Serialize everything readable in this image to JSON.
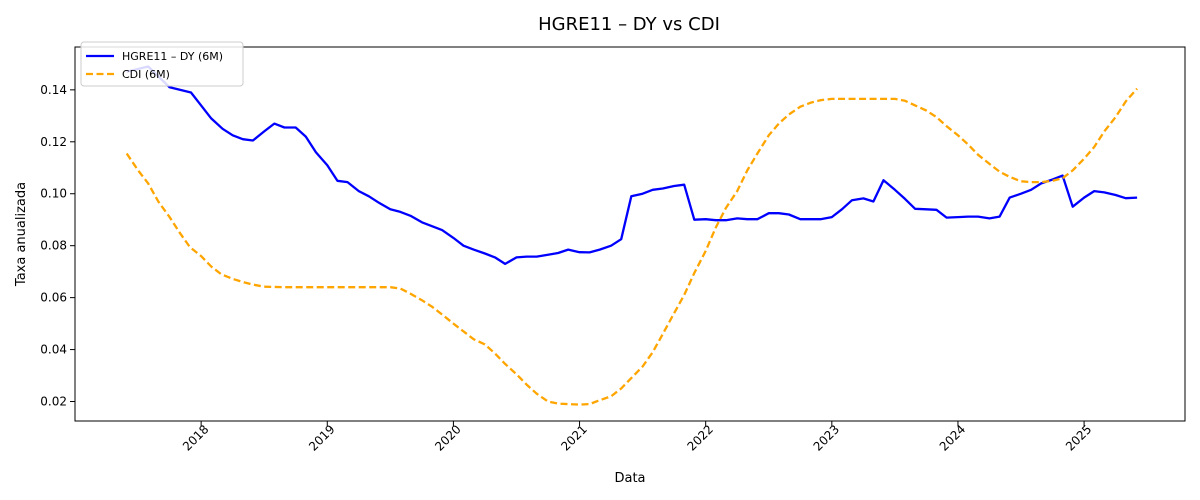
{
  "chart_data": {
    "type": "line",
    "title": "HGRE11 – DY vs CDI",
    "xlabel": "Data",
    "ylabel": "Taxa anualizada",
    "xlim": [
      2017.0,
      2025.8
    ],
    "ylim": [
      0.0125,
      0.1565
    ],
    "x_ticks": [
      2018,
      2019,
      2020,
      2021,
      2022,
      2023,
      2024,
      2025
    ],
    "x_tick_labels": [
      "2018",
      "2019",
      "2020",
      "2021",
      "2022",
      "2023",
      "2024",
      "2025"
    ],
    "y_ticks": [
      0.02,
      0.04,
      0.06,
      0.08,
      0.1,
      0.12,
      0.14
    ],
    "y_tick_labels": [
      "0.02",
      "0.04",
      "0.06",
      "0.08",
      "0.10",
      "0.12",
      "0.14"
    ],
    "grid": false,
    "legend_position": "upper-left",
    "series": [
      {
        "name": "HGRE11 – DY (6M)",
        "color": "#0000ff",
        "style": "solid",
        "points": [
          [
            2017.41,
            0.147
          ],
          [
            2017.58,
            0.149
          ],
          [
            2017.75,
            0.141
          ],
          [
            2017.92,
            0.139
          ],
          [
            2018.0,
            0.134
          ],
          [
            2018.08,
            0.129
          ],
          [
            2018.17,
            0.125
          ],
          [
            2018.25,
            0.1225
          ],
          [
            2018.33,
            0.121
          ],
          [
            2018.41,
            0.1205
          ],
          [
            2018.5,
            0.124
          ],
          [
            2018.58,
            0.127
          ],
          [
            2018.66,
            0.1255
          ],
          [
            2018.75,
            0.1255
          ],
          [
            2018.83,
            0.122
          ],
          [
            2018.91,
            0.116
          ],
          [
            2019.0,
            0.111
          ],
          [
            2019.08,
            0.105
          ],
          [
            2019.16,
            0.1045
          ],
          [
            2019.25,
            0.101
          ],
          [
            2019.33,
            0.099
          ],
          [
            2019.41,
            0.0965
          ],
          [
            2019.5,
            0.094
          ],
          [
            2019.58,
            0.093
          ],
          [
            2019.66,
            0.0915
          ],
          [
            2019.75,
            0.089
          ],
          [
            2019.83,
            0.0875
          ],
          [
            2019.91,
            0.086
          ],
          [
            2020.0,
            0.083
          ],
          [
            2020.08,
            0.08
          ],
          [
            2020.16,
            0.0785
          ],
          [
            2020.25,
            0.077
          ],
          [
            2020.33,
            0.0755
          ],
          [
            2020.41,
            0.073
          ],
          [
            2020.5,
            0.0755
          ],
          [
            2020.58,
            0.0758
          ],
          [
            2020.66,
            0.0758
          ],
          [
            2020.75,
            0.0765
          ],
          [
            2020.83,
            0.0772
          ],
          [
            2020.91,
            0.0785
          ],
          [
            2021.0,
            0.0775
          ],
          [
            2021.08,
            0.0774
          ],
          [
            2021.16,
            0.0785
          ],
          [
            2021.25,
            0.08
          ],
          [
            2021.33,
            0.0825
          ],
          [
            2021.41,
            0.099
          ],
          [
            2021.5,
            0.1
          ],
          [
            2021.58,
            0.1015
          ],
          [
            2021.66,
            0.102
          ],
          [
            2021.75,
            0.103
          ],
          [
            2021.83,
            0.1035
          ],
          [
            2021.91,
            0.09
          ],
          [
            2022.0,
            0.0902
          ],
          [
            2022.08,
            0.0898
          ],
          [
            2022.16,
            0.0898
          ],
          [
            2022.25,
            0.0905
          ],
          [
            2022.33,
            0.0902
          ],
          [
            2022.41,
            0.0902
          ],
          [
            2022.5,
            0.0925
          ],
          [
            2022.58,
            0.0925
          ],
          [
            2022.66,
            0.092
          ],
          [
            2022.75,
            0.0902
          ],
          [
            2022.83,
            0.0902
          ],
          [
            2022.91,
            0.0902
          ],
          [
            2023.0,
            0.091
          ],
          [
            2023.08,
            0.094
          ],
          [
            2023.16,
            0.0975
          ],
          [
            2023.25,
            0.0982
          ],
          [
            2023.33,
            0.097
          ],
          [
            2023.41,
            0.1052
          ],
          [
            2023.5,
            0.1015
          ],
          [
            2023.58,
            0.098
          ],
          [
            2023.66,
            0.0942
          ],
          [
            2023.75,
            0.094
          ],
          [
            2023.83,
            0.0938
          ],
          [
            2023.91,
            0.0908
          ],
          [
            2024.0,
            0.091
          ],
          [
            2024.08,
            0.0912
          ],
          [
            2024.16,
            0.0912
          ],
          [
            2024.25,
            0.0905
          ],
          [
            2024.33,
            0.0912
          ],
          [
            2024.41,
            0.0985
          ],
          [
            2024.5,
            0.1
          ],
          [
            2024.58,
            0.1015
          ],
          [
            2024.66,
            0.104
          ],
          [
            2024.75,
            0.1055
          ],
          [
            2024.83,
            0.107
          ],
          [
            2024.91,
            0.095
          ],
          [
            2025.0,
            0.0985
          ],
          [
            2025.08,
            0.101
          ],
          [
            2025.16,
            0.1005
          ],
          [
            2025.25,
            0.0995
          ],
          [
            2025.33,
            0.0983
          ],
          [
            2025.42,
            0.0985
          ]
        ]
      },
      {
        "name": "CDI (6M)",
        "color": "#ffa500",
        "style": "dashed",
        "points": [
          [
            2017.41,
            0.1155
          ],
          [
            2017.5,
            0.109
          ],
          [
            2017.58,
            0.104
          ],
          [
            2017.66,
            0.097
          ],
          [
            2017.75,
            0.091
          ],
          [
            2017.83,
            0.085
          ],
          [
            2017.91,
            0.0795
          ],
          [
            2018.0,
            0.076
          ],
          [
            2018.08,
            0.072
          ],
          [
            2018.16,
            0.069
          ],
          [
            2018.25,
            0.0672
          ],
          [
            2018.33,
            0.066
          ],
          [
            2018.41,
            0.065
          ],
          [
            2018.5,
            0.0642
          ],
          [
            2018.66,
            0.064
          ],
          [
            2019.0,
            0.064
          ],
          [
            2019.5,
            0.064
          ],
          [
            2019.58,
            0.0635
          ],
          [
            2019.66,
            0.0615
          ],
          [
            2019.75,
            0.059
          ],
          [
            2019.83,
            0.0565
          ],
          [
            2019.91,
            0.0535
          ],
          [
            2020.0,
            0.05
          ],
          [
            2020.08,
            0.047
          ],
          [
            2020.16,
            0.044
          ],
          [
            2020.25,
            0.042
          ],
          [
            2020.33,
            0.0385
          ],
          [
            2020.41,
            0.0345
          ],
          [
            2020.5,
            0.0305
          ],
          [
            2020.58,
            0.0265
          ],
          [
            2020.66,
            0.023
          ],
          [
            2020.75,
            0.02
          ],
          [
            2020.83,
            0.0192
          ],
          [
            2020.91,
            0.019
          ],
          [
            2021.0,
            0.0188
          ],
          [
            2021.08,
            0.019
          ],
          [
            2021.16,
            0.0205
          ],
          [
            2021.25,
            0.022
          ],
          [
            2021.33,
            0.025
          ],
          [
            2021.41,
            0.029
          ],
          [
            2021.5,
            0.0335
          ],
          [
            2021.58,
            0.039
          ],
          [
            2021.66,
            0.046
          ],
          [
            2021.75,
            0.054
          ],
          [
            2021.83,
            0.061
          ],
          [
            2021.91,
            0.0695
          ],
          [
            2022.0,
            0.078
          ],
          [
            2022.08,
            0.087
          ],
          [
            2022.16,
            0.0945
          ],
          [
            2022.25,
            0.101
          ],
          [
            2022.33,
            0.109
          ],
          [
            2022.41,
            0.1155
          ],
          [
            2022.5,
            0.1225
          ],
          [
            2022.58,
            0.127
          ],
          [
            2022.66,
            0.1305
          ],
          [
            2022.75,
            0.1335
          ],
          [
            2022.83,
            0.135
          ],
          [
            2022.91,
            0.136
          ],
          [
            2023.0,
            0.1365
          ],
          [
            2023.5,
            0.1365
          ],
          [
            2023.58,
            0.1358
          ],
          [
            2023.66,
            0.134
          ],
          [
            2023.75,
            0.132
          ],
          [
            2023.83,
            0.1295
          ],
          [
            2023.91,
            0.126
          ],
          [
            2024.0,
            0.1225
          ],
          [
            2024.08,
            0.119
          ],
          [
            2024.16,
            0.115
          ],
          [
            2024.25,
            0.1115
          ],
          [
            2024.33,
            0.1085
          ],
          [
            2024.41,
            0.1065
          ],
          [
            2024.5,
            0.1048
          ],
          [
            2024.58,
            0.1045
          ],
          [
            2024.66,
            0.1045
          ],
          [
            2024.75,
            0.105
          ],
          [
            2024.83,
            0.106
          ],
          [
            2024.91,
            0.109
          ],
          [
            2025.0,
            0.1135
          ],
          [
            2025.08,
            0.118
          ],
          [
            2025.16,
            0.124
          ],
          [
            2025.25,
            0.1295
          ],
          [
            2025.33,
            0.1355
          ],
          [
            2025.42,
            0.1405
          ]
        ]
      }
    ]
  }
}
